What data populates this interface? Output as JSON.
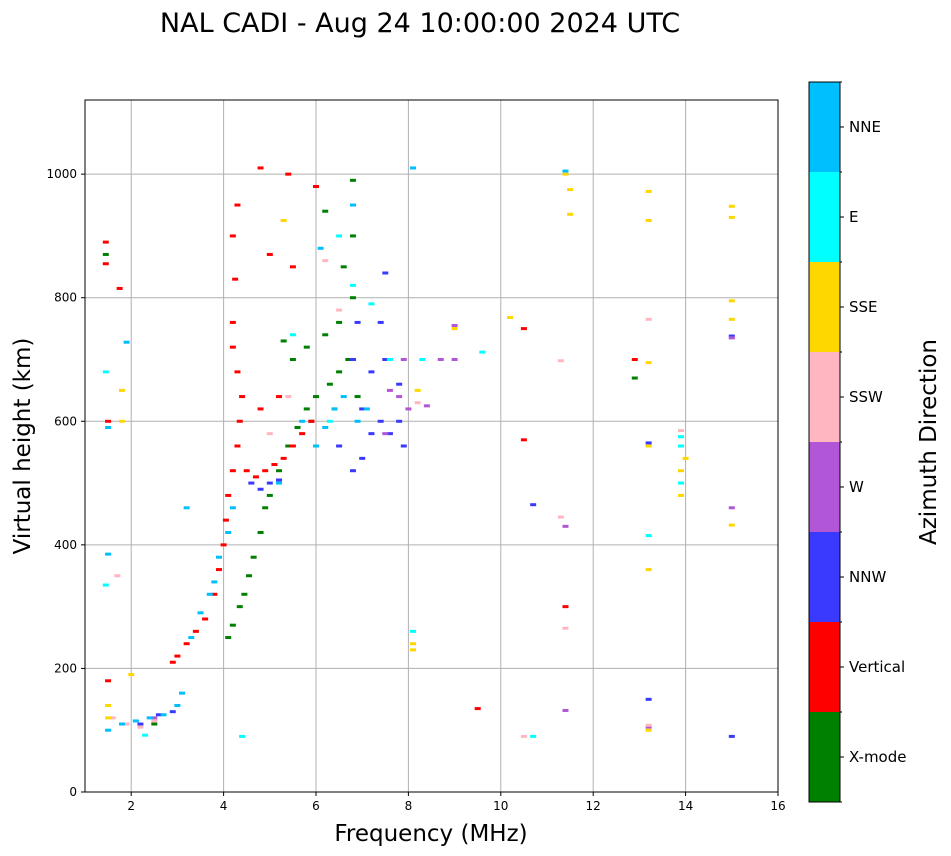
{
  "chart_data": {
    "type": "scatter",
    "title": "NAL CADI - Aug 24 10:00:00 2024 UTC",
    "xlabel": "Frequency (MHz)",
    "ylabel": "Virtual height (km)",
    "xlim": [
      1,
      16
    ],
    "ylim": [
      0,
      1120
    ],
    "xticks": [
      2,
      4,
      6,
      8,
      10,
      12,
      14,
      16
    ],
    "yticks": [
      0,
      200,
      400,
      600,
      800,
      1000
    ],
    "grid": true,
    "colorbar": {
      "label": "Azimuth Direction",
      "categories": [
        {
          "name": "X-mode",
          "color": "#008000"
        },
        {
          "name": "Vertical",
          "color": "#ff0000"
        },
        {
          "name": "NNW",
          "color": "#3a3aff"
        },
        {
          "name": "W",
          "color": "#b056d6"
        },
        {
          "name": "SSW",
          "color": "#ffb6c1"
        },
        {
          "name": "SSE",
          "color": "#ffd700"
        },
        {
          "name": "E",
          "color": "#00ffff"
        },
        {
          "name": "NNE",
          "color": "#00bfff"
        }
      ]
    },
    "series": [
      {
        "name": "X-mode",
        "points": [
          [
            4.1,
            250
          ],
          [
            4.2,
            270
          ],
          [
            4.35,
            300
          ],
          [
            4.45,
            320
          ],
          [
            4.55,
            350
          ],
          [
            4.65,
            380
          ],
          [
            4.8,
            420
          ],
          [
            4.9,
            460
          ],
          [
            5.0,
            480
          ],
          [
            5.2,
            520
          ],
          [
            5.4,
            560
          ],
          [
            5.6,
            590
          ],
          [
            5.8,
            620
          ],
          [
            6.0,
            640
          ],
          [
            6.3,
            660
          ],
          [
            6.5,
            680
          ],
          [
            6.7,
            700
          ],
          [
            5.5,
            700
          ],
          [
            5.8,
            720
          ],
          [
            6.2,
            740
          ],
          [
            6.5,
            760
          ],
          [
            6.8,
            800
          ],
          [
            6.6,
            850
          ],
          [
            6.8,
            900
          ],
          [
            6.2,
            940
          ],
          [
            6.8,
            990
          ],
          [
            1.45,
            870
          ],
          [
            2.5,
            110
          ],
          [
            5.3,
            730
          ],
          [
            5.9,
            600
          ],
          [
            6.4,
            620
          ],
          [
            6.9,
            640
          ],
          [
            12.9,
            670
          ]
        ]
      },
      {
        "name": "Vertical",
        "points": [
          [
            2.9,
            210
          ],
          [
            3.0,
            220
          ],
          [
            3.2,
            240
          ],
          [
            3.4,
            260
          ],
          [
            3.6,
            280
          ],
          [
            3.8,
            320
          ],
          [
            3.9,
            360
          ],
          [
            4.0,
            400
          ],
          [
            4.05,
            440
          ],
          [
            4.1,
            480
          ],
          [
            4.2,
            520
          ],
          [
            4.3,
            560
          ],
          [
            4.35,
            600
          ],
          [
            4.4,
            640
          ],
          [
            4.5,
            520
          ],
          [
            4.7,
            510
          ],
          [
            4.9,
            520
          ],
          [
            5.1,
            530
          ],
          [
            5.3,
            540
          ],
          [
            5.5,
            560
          ],
          [
            5.7,
            580
          ],
          [
            5.9,
            600
          ],
          [
            4.3,
            680
          ],
          [
            4.2,
            720
          ],
          [
            4.2,
            760
          ],
          [
            4.25,
            830
          ],
          [
            4.2,
            900
          ],
          [
            4.3,
            950
          ],
          [
            4.8,
            1010
          ],
          [
            5.4,
            1000
          ],
          [
            6.0,
            980
          ],
          [
            5.0,
            870
          ],
          [
            5.5,
            850
          ],
          [
            4.8,
            620
          ],
          [
            5.2,
            640
          ],
          [
            1.5,
            180
          ],
          [
            1.5,
            600
          ],
          [
            1.45,
            890
          ],
          [
            1.45,
            855
          ],
          [
            10.5,
            570
          ],
          [
            10.5,
            750
          ],
          [
            11.4,
            300
          ],
          [
            12.9,
            700
          ],
          [
            9.5,
            135
          ],
          [
            1.75,
            815
          ]
        ]
      },
      {
        "name": "NNW",
        "points": [
          [
            4.6,
            500
          ],
          [
            4.8,
            490
          ],
          [
            5.0,
            500
          ],
          [
            5.2,
            505
          ],
          [
            6.5,
            560
          ],
          [
            6.8,
            520
          ],
          [
            7.0,
            540
          ],
          [
            7.2,
            580
          ],
          [
            7.4,
            600
          ],
          [
            7.6,
            580
          ],
          [
            7.8,
            600
          ],
          [
            7.9,
            560
          ],
          [
            7.0,
            620
          ],
          [
            7.2,
            680
          ],
          [
            7.5,
            700
          ],
          [
            7.8,
            660
          ],
          [
            6.9,
            760
          ],
          [
            7.5,
            840
          ],
          [
            7.4,
            760
          ],
          [
            2.2,
            110
          ],
          [
            2.6,
            125
          ],
          [
            2.9,
            130
          ],
          [
            10.7,
            465
          ],
          [
            13.2,
            150
          ],
          [
            13.2,
            565
          ],
          [
            15.0,
            90
          ],
          [
            15.0,
            738
          ],
          [
            6.8,
            700
          ]
        ]
      },
      {
        "name": "W",
        "points": [
          [
            7.6,
            650
          ],
          [
            7.8,
            640
          ],
          [
            8.0,
            620
          ],
          [
            8.4,
            625
          ],
          [
            8.7,
            700
          ],
          [
            9.0,
            700
          ],
          [
            9.0,
            755
          ],
          [
            7.9,
            700
          ],
          [
            7.5,
            580
          ],
          [
            2.5,
            120
          ],
          [
            11.4,
            430
          ],
          [
            11.4,
            132
          ],
          [
            15.0,
            460
          ],
          [
            15.0,
            735
          ],
          [
            13.2,
            105
          ]
        ]
      },
      {
        "name": "SSW",
        "points": [
          [
            1.6,
            120
          ],
          [
            1.9,
            110
          ],
          [
            2.2,
            105
          ],
          [
            2.5,
            115
          ],
          [
            5.0,
            580
          ],
          [
            5.4,
            640
          ],
          [
            6.2,
            860
          ],
          [
            6.5,
            780
          ],
          [
            8.2,
            630
          ],
          [
            11.3,
            445
          ],
          [
            11.4,
            265
          ],
          [
            11.3,
            698
          ],
          [
            13.2,
            765
          ],
          [
            13.2,
            108
          ],
          [
            13.9,
            585
          ],
          [
            10.5,
            90
          ],
          [
            1.7,
            350
          ]
        ]
      },
      {
        "name": "SSE",
        "points": [
          [
            1.5,
            140
          ],
          [
            1.5,
            120
          ],
          [
            8.1,
            240
          ],
          [
            8.1,
            230
          ],
          [
            8.2,
            650
          ],
          [
            9.0,
            750
          ],
          [
            10.2,
            768
          ],
          [
            11.5,
            975
          ],
          [
            11.4,
            1000
          ],
          [
            11.5,
            935
          ],
          [
            13.2,
            360
          ],
          [
            13.2,
            560
          ],
          [
            13.2,
            695
          ],
          [
            13.2,
            925
          ],
          [
            13.2,
            972
          ],
          [
            13.2,
            100
          ],
          [
            13.9,
            480
          ],
          [
            13.9,
            520
          ],
          [
            14.0,
            540
          ],
          [
            15.0,
            432
          ],
          [
            15.0,
            765
          ],
          [
            15.0,
            795
          ],
          [
            15.0,
            930
          ],
          [
            15.0,
            948
          ],
          [
            1.8,
            650
          ],
          [
            1.8,
            600
          ],
          [
            2.0,
            190
          ],
          [
            5.3,
            925
          ]
        ]
      },
      {
        "name": "E",
        "points": [
          [
            1.45,
            680
          ],
          [
            1.45,
            335
          ],
          [
            2.3,
            92
          ],
          [
            4.4,
            90
          ],
          [
            5.5,
            740
          ],
          [
            6.0,
            560
          ],
          [
            6.3,
            600
          ],
          [
            6.8,
            820
          ],
          [
            7.2,
            790
          ],
          [
            7.6,
            700
          ],
          [
            8.1,
            260
          ],
          [
            8.3,
            700
          ],
          [
            9.6,
            712
          ],
          [
            10.7,
            90
          ],
          [
            13.2,
            415
          ],
          [
            13.9,
            500
          ],
          [
            13.9,
            560
          ],
          [
            13.9,
            575
          ],
          [
            6.5,
            900
          ]
        ]
      },
      {
        "name": "NNE",
        "points": [
          [
            1.5,
            100
          ],
          [
            1.5,
            385
          ],
          [
            1.5,
            590
          ],
          [
            1.9,
            728
          ],
          [
            2.1,
            115
          ],
          [
            2.4,
            120
          ],
          [
            2.7,
            125
          ],
          [
            3.0,
            140
          ],
          [
            3.1,
            160
          ],
          [
            3.3,
            250
          ],
          [
            3.5,
            290
          ],
          [
            3.7,
            320
          ],
          [
            3.8,
            340
          ],
          [
            3.9,
            380
          ],
          [
            4.1,
            420
          ],
          [
            4.2,
            460
          ],
          [
            5.7,
            600
          ],
          [
            6.0,
            560
          ],
          [
            6.2,
            590
          ],
          [
            6.4,
            620
          ],
          [
            6.6,
            640
          ],
          [
            6.9,
            600
          ],
          [
            7.1,
            620
          ],
          [
            6.1,
            880
          ],
          [
            6.8,
            950
          ],
          [
            8.1,
            1010
          ],
          [
            11.4,
            1005
          ],
          [
            3.2,
            460
          ],
          [
            1.8,
            110
          ],
          [
            5.2,
            500
          ]
        ]
      }
    ]
  }
}
